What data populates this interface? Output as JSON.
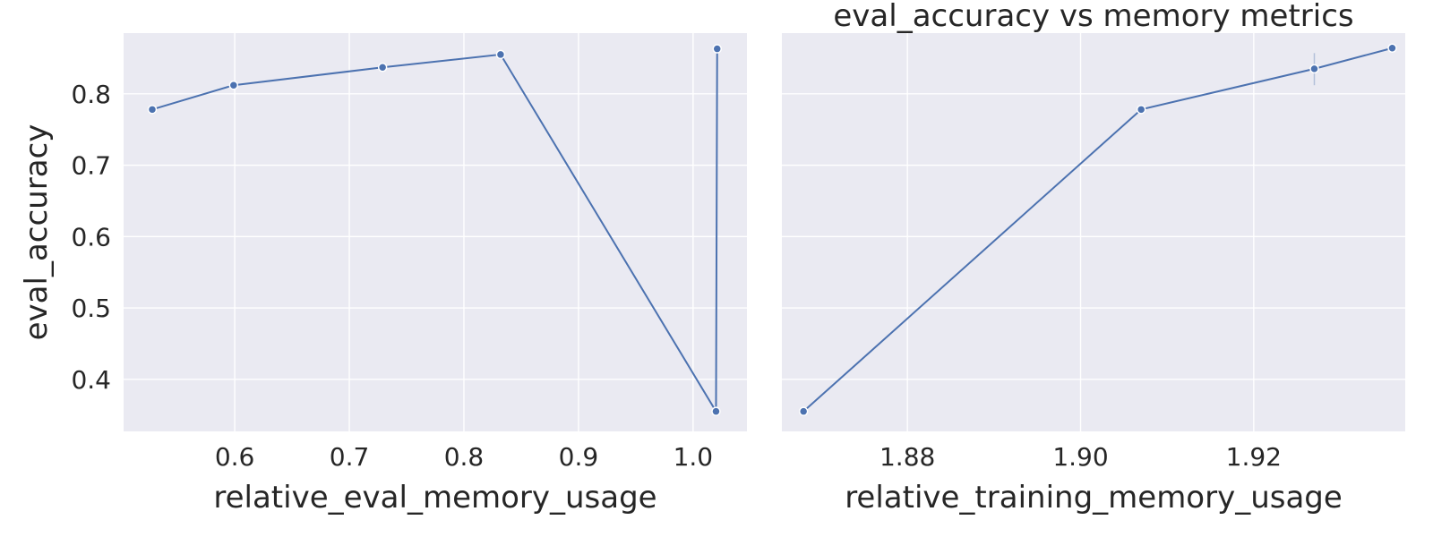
{
  "chart_data": [
    {
      "type": "line",
      "title": "",
      "xlabel": "relative_eval_memory_usage",
      "ylabel": "eval_accuracy",
      "xlim": [
        0.503,
        1.047
      ],
      "ylim": [
        0.327,
        0.885
      ],
      "xticks": [
        0.6,
        0.7,
        0.8,
        0.9,
        1.0
      ],
      "xtick_labels": [
        "0.6",
        "0.7",
        "0.8",
        "0.9",
        "1.0"
      ],
      "yticks": [
        0.4,
        0.5,
        0.6,
        0.7,
        0.8
      ],
      "ytick_labels": [
        "0.4",
        "0.5",
        "0.6",
        "0.7",
        "0.8"
      ],
      "grid": true,
      "series": [
        {
          "color": "#4c72b0",
          "points": [
            {
              "x": 0.528,
              "y": 0.778
            },
            {
              "x": 0.599,
              "y": 0.812
            },
            {
              "x": 0.729,
              "y": 0.837
            },
            {
              "x": 0.832,
              "y": 0.855
            },
            {
              "x": 1.02,
              "y": 0.355
            },
            {
              "x": 1.021,
              "y": 0.863
            }
          ]
        }
      ]
    },
    {
      "type": "line",
      "title": "eval_accuracy vs memory metrics",
      "xlabel": "relative_training_memory_usage",
      "ylabel": "",
      "xlim": [
        1.8655,
        1.9375
      ],
      "ylim": [
        0.327,
        0.885
      ],
      "xticks": [
        1.88,
        1.9,
        1.92
      ],
      "xtick_labels": [
        "1.88",
        "1.90",
        "1.92"
      ],
      "yticks": [
        0.4,
        0.5,
        0.6,
        0.7,
        0.8
      ],
      "ytick_labels": [],
      "grid": true,
      "series": [
        {
          "color": "#4c72b0",
          "points": [
            {
              "x": 1.868,
              "y": 0.355
            },
            {
              "x": 1.907,
              "y": 0.778
            },
            {
              "x": 1.927,
              "y": 0.835,
              "err": [
                0.812,
                0.857
              ]
            },
            {
              "x": 1.936,
              "y": 0.864
            }
          ]
        }
      ]
    }
  ]
}
